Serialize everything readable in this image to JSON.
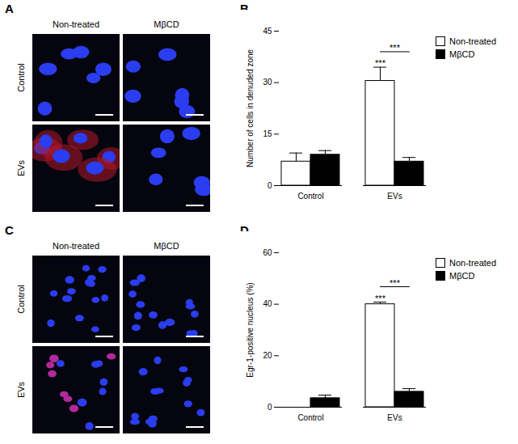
{
  "image_panels": [
    {
      "letter": "A",
      "columns": [
        "Non-treated",
        "MβCD"
      ],
      "rows": [
        "Control",
        "EVs"
      ]
    },
    {
      "letter": "C",
      "columns": [
        "Non-treated",
        "MβCD"
      ],
      "rows": [
        "Control",
        "EVs"
      ]
    }
  ],
  "chart_data": [
    {
      "letter": "B",
      "type": "bar",
      "y_label": "Number of cells in denuded zone",
      "categories": [
        "Control",
        "EVs"
      ],
      "series": [
        {
          "name": "Non-treated",
          "color": "#ffffff",
          "values": [
            7,
            30.5
          ],
          "errors": [
            2.5,
            4
          ]
        },
        {
          "name": "MβCD",
          "color": "#000000",
          "values": [
            9,
            7
          ],
          "errors": [
            1.2,
            1.2
          ]
        }
      ],
      "ylim": [
        0,
        45
      ],
      "yticks": [
        0,
        15,
        30,
        45
      ],
      "legend": "right",
      "annotations": [
        {
          "text": "***",
          "category": "EVs",
          "series": "Non-treated"
        },
        {
          "text": "***",
          "category": "EVs",
          "between": [
            "Non-treated",
            "MβCD"
          ]
        }
      ]
    },
    {
      "letter": "D",
      "type": "bar",
      "y_label": "Egr-1-positive nucleus (%)",
      "categories": [
        "Control",
        "EVs"
      ],
      "series": [
        {
          "name": "Non-treated",
          "color": "#ffffff",
          "values": [
            0,
            40
          ],
          "errors": [
            0,
            0.8
          ]
        },
        {
          "name": "MβCD",
          "color": "#000000",
          "values": [
            3.5,
            6
          ],
          "errors": [
            1.2,
            1.2
          ]
        }
      ],
      "ylim": [
        0,
        60
      ],
      "yticks": [
        0,
        20,
        40,
        60
      ],
      "legend": "right",
      "annotations": [
        {
          "text": "***",
          "category": "EVs",
          "series": "Non-treated"
        },
        {
          "text": "***",
          "category": "EVs",
          "between": [
            "Non-treated",
            "MβCD"
          ]
        }
      ]
    }
  ]
}
